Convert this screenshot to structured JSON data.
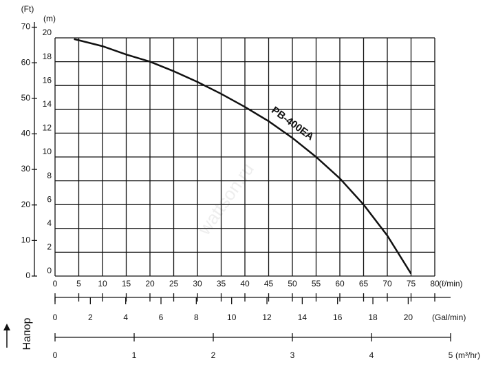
{
  "chart_data": {
    "type": "line",
    "x": [
      4,
      10,
      15,
      20,
      25,
      30,
      35,
      40,
      45,
      50,
      55,
      60,
      65,
      70,
      75
    ],
    "series": [
      {
        "name": "PB-400EA",
        "color": "#111111",
        "values": [
          19.9,
          19.3,
          18.6,
          18.0,
          17.2,
          16.3,
          15.3,
          14.2,
          13.0,
          11.6,
          10.0,
          8.2,
          6.0,
          3.4,
          0.2
        ]
      }
    ],
    "xlim": [
      0,
      80
    ],
    "xticks": [
      0,
      5,
      10,
      15,
      20,
      25,
      30,
      35,
      40,
      45,
      50,
      55,
      60,
      65,
      70,
      75,
      80
    ],
    "xlabel": "(ℓ/min)",
    "ylim": [
      0,
      20
    ],
    "yticks": [
      0,
      2,
      4,
      6,
      8,
      10,
      12,
      14,
      16,
      18,
      20
    ],
    "ylabel": "(m)",
    "y2lim": [
      0,
      67
    ],
    "y2ticks": [
      0,
      10,
      20,
      30,
      40,
      50,
      60,
      70
    ],
    "y2label": "(Ft)",
    "gal_axis": {
      "label": "(Gal/min)",
      "xlim": [
        0,
        22.4
      ],
      "xticks": [
        0,
        2,
        4,
        6,
        8,
        10,
        12,
        14,
        16,
        18,
        20
      ]
    },
    "m3_axis": {
      "label": "(m³/hr)",
      "xlim": [
        0,
        5
      ],
      "xticks": [
        0,
        1,
        2,
        3,
        4,
        5
      ]
    },
    "side_label": "Напор",
    "watermark": "wattson.ru",
    "grid": true
  }
}
